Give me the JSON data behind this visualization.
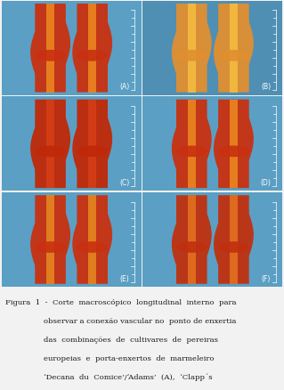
{
  "panel_labels": [
    "(A)",
    "(B)",
    "(C)",
    "(D)",
    "(E)",
    "(F)"
  ],
  "panel_bg": "#5b9fc4",
  "outer_bg": "#f2f2f2",
  "caption_color": "#1a1a1a",
  "figsize": [
    3.19,
    4.38
  ],
  "dpi": 100,
  "grid_rows": 3,
  "grid_cols": 2,
  "caption_line1": "Figura  1  -  Corte  macroscópico  longitudinal  interno  para",
  "caption_line2": "observar a conexão vascular no  ponto de enxertia",
  "caption_line3": "das  combinações  de  cultivares  de  pereiras",
  "caption_line4": "europeias  e  porta-enxertos  de  marmeleiro",
  "caption_line5": "‘Decana  du  Comice’/‘Adams’  (A),  ‘Clapp´s",
  "stem_colors": {
    "A": {
      "outer": "#c83010",
      "inner": "#f09020",
      "bg": "#5b9fc4"
    },
    "B": {
      "outer": "#e09030",
      "inner": "#f8c040",
      "bg": "#4f8fb4"
    },
    "C": {
      "outer": "#c02808",
      "inner": "#d84018",
      "bg": "#5b9fc4"
    },
    "D": {
      "outer": "#c83010",
      "inner": "#f09020",
      "bg": "#5b9fc4"
    },
    "E": {
      "outer": "#c83010",
      "inner": "#e89020",
      "bg": "#5b9fc4"
    },
    "F": {
      "outer": "#c03010",
      "inner": "#e87820",
      "bg": "#5b9fc4"
    }
  }
}
